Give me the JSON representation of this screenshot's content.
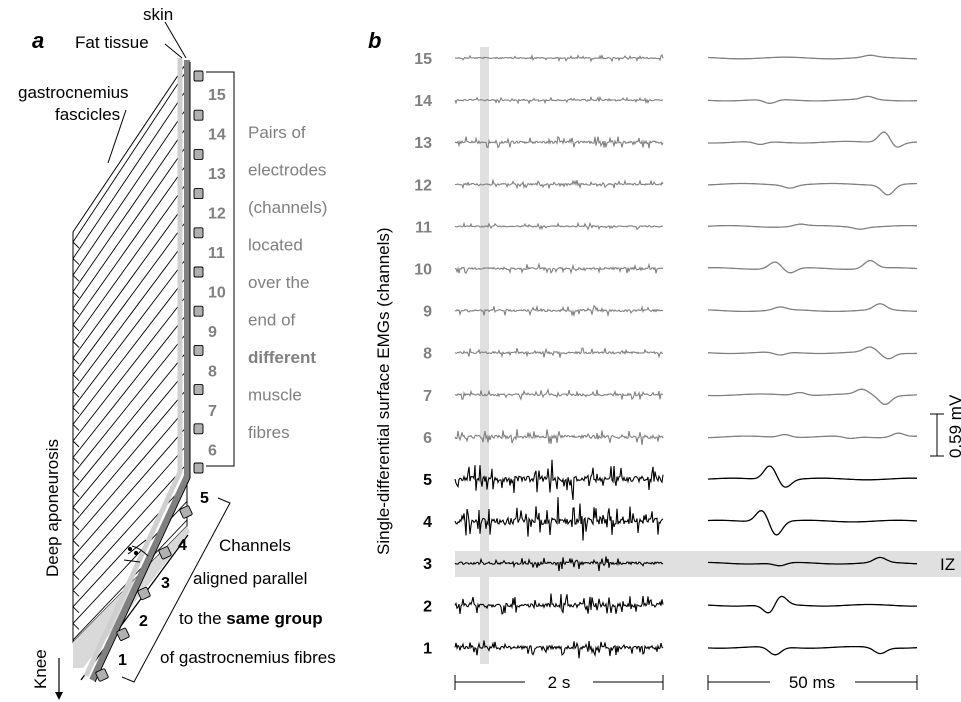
{
  "panel_a": {
    "letter": "a",
    "skin_label": "skin",
    "fat_label": "Fat tissue",
    "fascicles_label_line1": "gastrocnemius",
    "fascicles_label_line2": "fascicles",
    "aponeurosis_label": "Deep aponeurosis",
    "knee_label": "Knee",
    "upper_channels": [
      "15",
      "14",
      "13",
      "12",
      "11",
      "10",
      "9",
      "8",
      "7",
      "6"
    ],
    "lower_channels": [
      "5",
      "4",
      "3",
      "2",
      "1"
    ],
    "upper_note_lines": [
      "Pairs of",
      "electrodes",
      "(channels)",
      "located",
      "over the",
      "end of",
      "different",
      "muscle",
      "fibres"
    ],
    "lower_note": {
      "line1": "Channels",
      "line2": "aligned parallel",
      "line3_pre": "to the ",
      "line3_bold": "same group",
      "line4": "of gastrocnemius fibres"
    }
  },
  "panel_b": {
    "letter": "b",
    "y_axis_label": "Single-differential surface EMGs (channels)",
    "channels": [
      "15",
      "14",
      "13",
      "12",
      "11",
      "10",
      "9",
      "8",
      "7",
      "6",
      "5",
      "4",
      "3",
      "2",
      "1"
    ],
    "time_scale_left": "2 s",
    "time_scale_right": "50 ms",
    "amplitude_scale": "0.59 mV",
    "iz_label": "IZ",
    "colors": {
      "upper_traces": "#808080",
      "lower_traces": "#000000",
      "highlight": "#e0e0e0"
    }
  }
}
